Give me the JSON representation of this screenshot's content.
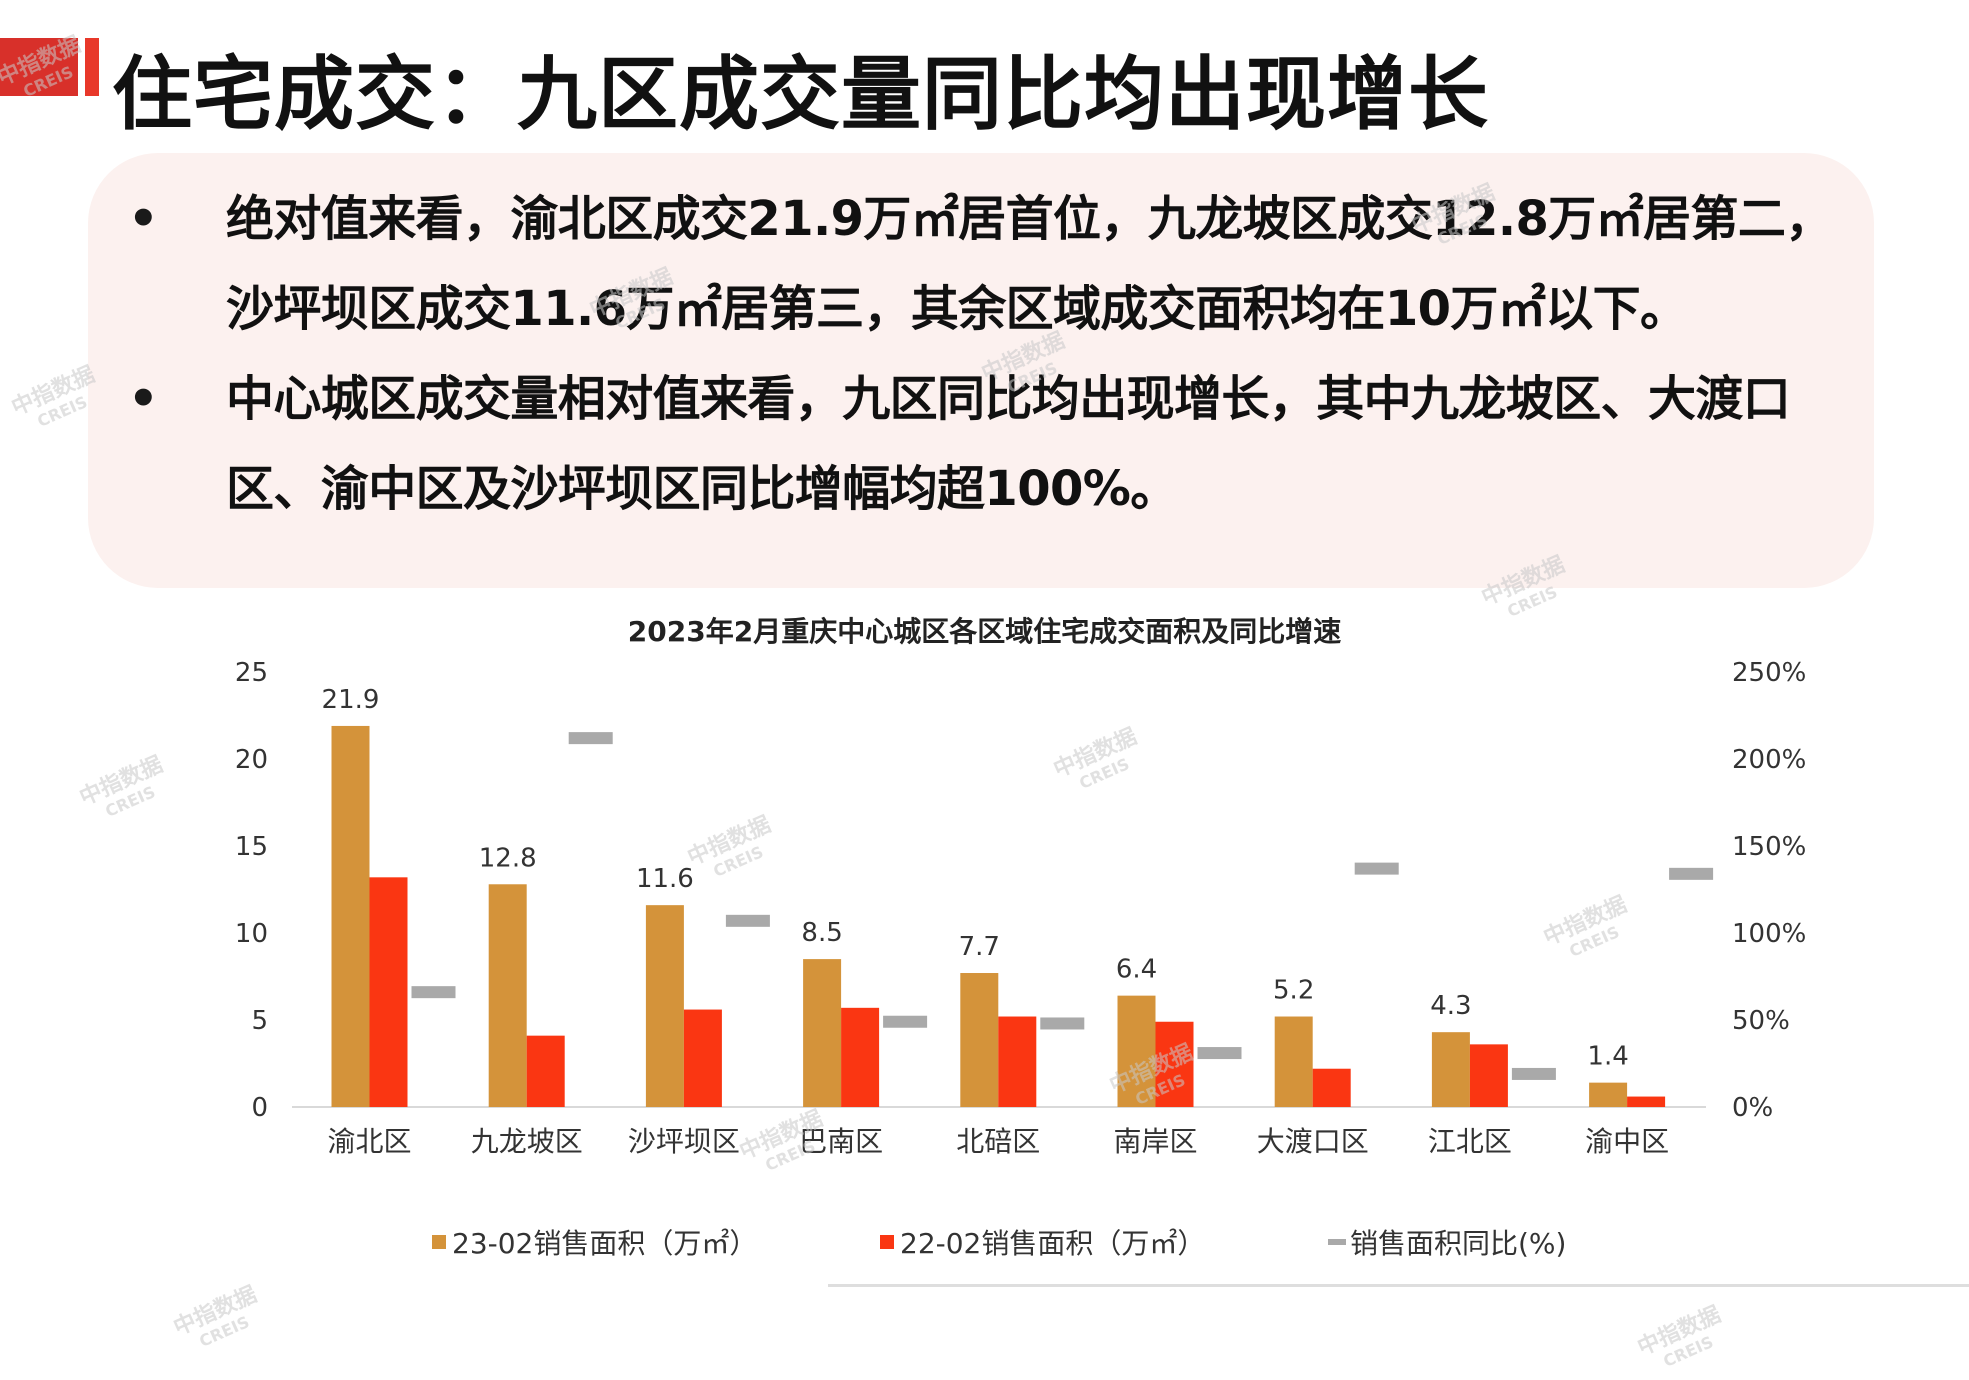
{
  "colors": {
    "accent": "#e8382a",
    "corner": "#d8302a",
    "series_2023": "#d4933a",
    "series_2022": "#fa3612",
    "series_yoy": "#a9a9a9",
    "watermark": "#c9c9c9"
  },
  "slide": {
    "title": "住宅成交：九区成交量同比均出现增长"
  },
  "summary": {
    "bullet_glyph": "•",
    "items": [
      {
        "text": "绝对值来看，渝北区成交21.9万㎡居首位，九龙坡区成交12.8万㎡居第二，沙坪坝区成交11.6万㎡居第三，其余区域成交面积均在10万㎡以下。"
      },
      {
        "text": "中心城区成交量相对值来看，九区同比均出现增长，其中九龙坡区、大渡口区、渝中区及沙坪坝区同比增幅均超100%。"
      }
    ]
  },
  "watermark": {
    "label": "中指数据",
    "sub": "CREIS"
  },
  "legend": {
    "series_2023": "23-02销售面积（万㎡）",
    "series_2022": "22-02销售面积（万㎡）",
    "series_yoy": "销售面积同比(%)"
  },
  "chart_data": {
    "type": "bar",
    "title": "2023年2月重庆中心城区各区域住宅成交面积及同比增速",
    "categories": [
      "渝北区",
      "九龙坡区",
      "沙坪坝区",
      "巴南区",
      "北碚区",
      "南岸区",
      "大渡口区",
      "江北区",
      "渝中区"
    ],
    "series": [
      {
        "name": "23-02销售面积（万㎡）",
        "kind": "bar",
        "axis": "left",
        "color": "#d4933a",
        "values": [
          21.9,
          12.8,
          11.6,
          8.5,
          7.7,
          6.4,
          5.2,
          4.3,
          1.4
        ],
        "data_labels": true
      },
      {
        "name": "22-02销售面积（万㎡）",
        "kind": "bar",
        "axis": "left",
        "color": "#fa3612",
        "values": [
          13.2,
          4.1,
          5.6,
          5.7,
          5.2,
          4.9,
          2.2,
          3.6,
          0.6
        ]
      },
      {
        "name": "销售面积同比(%)",
        "kind": "marker",
        "axis": "right",
        "color": "#a9a9a9",
        "values": [
          66,
          212,
          107,
          49,
          48,
          31,
          137,
          19,
          134
        ]
      }
    ],
    "y_left": {
      "min": 0,
      "max": 25,
      "ticks": [
        "0",
        "5",
        "10",
        "15",
        "20",
        "25"
      ]
    },
    "y_right": {
      "min": 0,
      "max": 250,
      "ticks": [
        "0%",
        "50%",
        "100%",
        "150%",
        "200%",
        "250%"
      ]
    },
    "grid": false,
    "legend_position": "bottom"
  }
}
